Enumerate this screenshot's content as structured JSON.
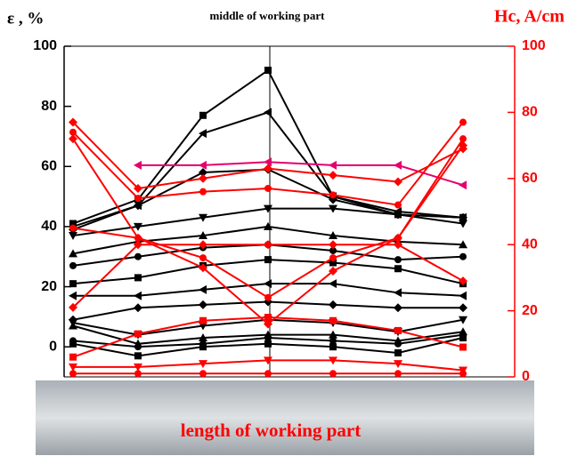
{
  "chart_data": {
    "type": "line",
    "title": "middle of working part",
    "y_label": "ε , %",
    "y2_label": "Hc, A/cm",
    "annotation": "length of working part",
    "categories": [
      null,
      null,
      null,
      null,
      null,
      null,
      null
    ],
    "ylim": [
      -10,
      100
    ],
    "yticks": [
      0,
      20,
      40,
      60,
      80,
      100
    ],
    "y2lim": [
      0,
      100
    ],
    "y2ticks": [
      0,
      20,
      40,
      60,
      80,
      100
    ],
    "series": [
      {
        "color": "#000000",
        "marker": "square",
        "values": [
          41,
          49,
          77,
          92,
          50,
          44,
          43
        ]
      },
      {
        "color": "#000000",
        "marker": "tri-left",
        "values": [
          40,
          47,
          71,
          78,
          50,
          45,
          43
        ]
      },
      {
        "color": "#000000",
        "marker": "diamond",
        "values": [
          39,
          47,
          58,
          59,
          49,
          44,
          43
        ]
      },
      {
        "color": "#000000",
        "marker": "tri-down",
        "values": [
          37,
          40,
          43,
          46,
          46,
          44,
          41
        ]
      },
      {
        "color": "#000000",
        "marker": "triangle",
        "values": [
          31,
          35,
          37,
          40,
          37,
          35,
          34
        ]
      },
      {
        "color": "#000000",
        "marker": "circle",
        "values": [
          27,
          30,
          33,
          34,
          32,
          29,
          30
        ]
      },
      {
        "color": "#000000",
        "marker": "square",
        "values": [
          21,
          23,
          27,
          29,
          28,
          26,
          21
        ]
      },
      {
        "color": "#000000",
        "marker": "tri-left",
        "values": [
          17,
          17,
          19,
          21,
          21,
          18,
          17
        ]
      },
      {
        "color": "#000000",
        "marker": "diamond",
        "values": [
          9,
          13,
          14,
          15,
          14,
          13,
          13
        ]
      },
      {
        "color": "#000000",
        "marker": "tri-down",
        "values": [
          8,
          4,
          7,
          9,
          8,
          5,
          9
        ]
      },
      {
        "color": "#000000",
        "marker": "triangle",
        "values": [
          7,
          1,
          3,
          4,
          4,
          2,
          5
        ]
      },
      {
        "color": "#000000",
        "marker": "circle",
        "values": [
          2,
          0,
          1,
          3,
          2,
          1,
          4
        ]
      },
      {
        "color": "#000000",
        "marker": "square",
        "values": [
          1,
          -3,
          0,
          1,
          0,
          -2,
          3
        ]
      },
      {
        "color": "#e4006e",
        "marker": "tri-left",
        "axis": "y2",
        "values": [
          null,
          64,
          64,
          65,
          64,
          64,
          58
        ]
      },
      {
        "color": "#ff0000",
        "marker": "diamond",
        "axis": "y2",
        "values": [
          77,
          57,
          60,
          63,
          61,
          59,
          69
        ]
      },
      {
        "color": "#ff0000",
        "marker": "circle",
        "axis": "y2",
        "values": [
          74,
          54,
          56,
          57,
          55,
          52,
          77
        ]
      },
      {
        "color": "#ff0000",
        "marker": "diamond",
        "axis": "y2",
        "values": [
          72,
          42,
          33,
          16,
          32,
          42,
          70
        ]
      },
      {
        "color": "#ff0000",
        "marker": "circle",
        "axis": "y2",
        "values": [
          45,
          42,
          36,
          24,
          36,
          42,
          72
        ]
      },
      {
        "color": "#ff0000",
        "marker": "diamond",
        "axis": "y2",
        "values": [
          21,
          40,
          40,
          40,
          40,
          40,
          29
        ]
      },
      {
        "color": "#ff0000",
        "marker": "square",
        "axis": "y2",
        "values": [
          6,
          13,
          17,
          18,
          17,
          14,
          9
        ]
      },
      {
        "color": "#ff0000",
        "marker": "tri-down",
        "axis": "y2",
        "values": [
          3,
          3,
          4,
          5,
          5,
          4,
          2
        ]
      },
      {
        "color": "#ff0000",
        "marker": "circle",
        "axis": "y2",
        "values": [
          1,
          1,
          1,
          1,
          1,
          1,
          1
        ]
      }
    ]
  }
}
